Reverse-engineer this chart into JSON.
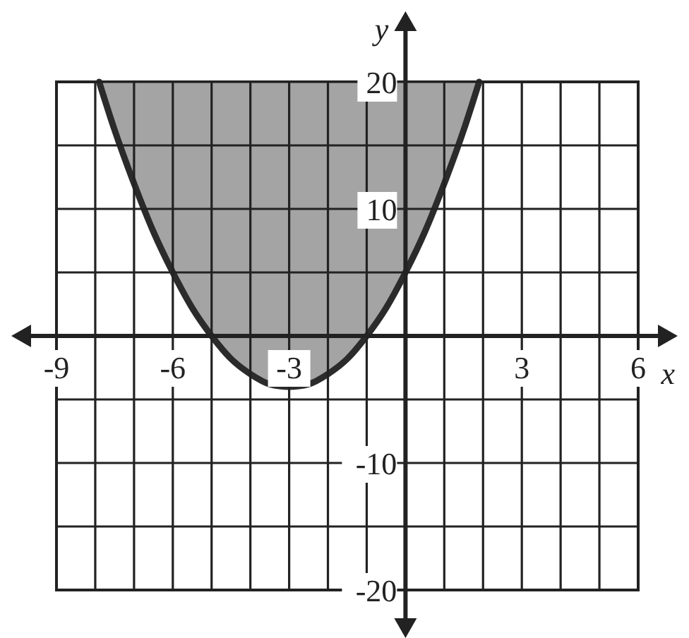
{
  "chart_data": {
    "type": "line",
    "xlabel": "x",
    "ylabel": "y",
    "xlim": [
      -9,
      6
    ],
    "ylim": [
      -20,
      20
    ],
    "xticks": [
      -9,
      {
        "value": -8,
        "label": null
      },
      {
        "value": -7,
        "label": null
      },
      -6,
      {
        "value": -5,
        "label": null
      },
      {
        "value": -4,
        "label": null
      },
      -3,
      {
        "value": -2,
        "label": null
      },
      {
        "value": -1,
        "label": null
      },
      {
        "value": 0,
        "label": null
      },
      {
        "value": 1,
        "label": null
      },
      {
        "value": 2,
        "label": null
      },
      3,
      {
        "value": 4,
        "label": null
      },
      {
        "value": 5,
        "label": null
      },
      6
    ],
    "yticks": [
      -20,
      {
        "value": -15,
        "label": null
      },
      -10,
      {
        "value": -5,
        "label": null
      },
      {
        "value": 0,
        "label": null
      },
      {
        "value": 5,
        "label": null
      },
      10,
      {
        "value": 15,
        "label": null
      },
      20
    ],
    "grid": true,
    "marker": "none",
    "line_style": "solid",
    "series": [
      {
        "color": "#2b2b2b",
        "x": [
          -7.9,
          -7.5,
          -7,
          -6.5,
          -6,
          -5.5,
          -5,
          -4.5,
          -4,
          -3.5,
          -3,
          -2.5,
          -2,
          -1.5,
          -1,
          -0.5,
          0,
          0.5,
          1,
          1.5,
          1.9
        ],
        "values": [
          20,
          16.2,
          12,
          8.2,
          5,
          2.2,
          0,
          -1.8,
          -3,
          -3.8,
          -4,
          -3.8,
          -3,
          -1.8,
          0,
          2.2,
          5,
          8.2,
          12,
          16.2,
          20
        ],
        "lower": [
          20,
          16.2,
          12,
          8.2,
          5,
          2.2,
          0,
          -1.8,
          -3,
          -3.8,
          -4,
          -3.8,
          -3,
          -1.8,
          0,
          2.2,
          5,
          8.2,
          12,
          16.2,
          20
        ],
        "upper": [
          20,
          20,
          20,
          20,
          20,
          20,
          20,
          20,
          20,
          20,
          20,
          20,
          20,
          20,
          20,
          20,
          20,
          20,
          20,
          20,
          20
        ]
      }
    ]
  }
}
